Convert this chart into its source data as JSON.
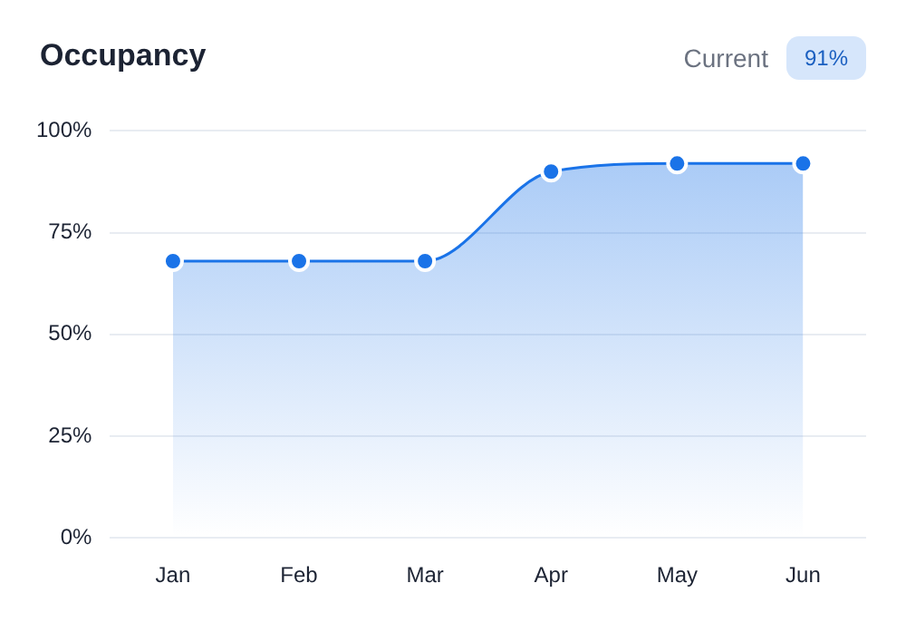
{
  "chart_data": {
    "type": "area",
    "title": "Occupancy",
    "annotations": [
      "Current",
      "91%"
    ],
    "categories": [
      "Jan",
      "Feb",
      "Mar",
      "Apr",
      "May",
      "Jun"
    ],
    "series": [
      {
        "color": "#1a73e8",
        "values": [
          68,
          68,
          68,
          90,
          92,
          92
        ]
      }
    ],
    "ylim": [
      0,
      100
    ],
    "yticks": [
      {
        "value": 0,
        "label": "0%"
      },
      {
        "value": 25,
        "label": "25%"
      },
      {
        "value": 50,
        "label": "50%"
      },
      {
        "value": 75,
        "label": "75%"
      },
      {
        "value": 100,
        "label": "100%"
      }
    ],
    "grid": "y",
    "legend": false,
    "marker": "circle",
    "line_style": "solid"
  }
}
